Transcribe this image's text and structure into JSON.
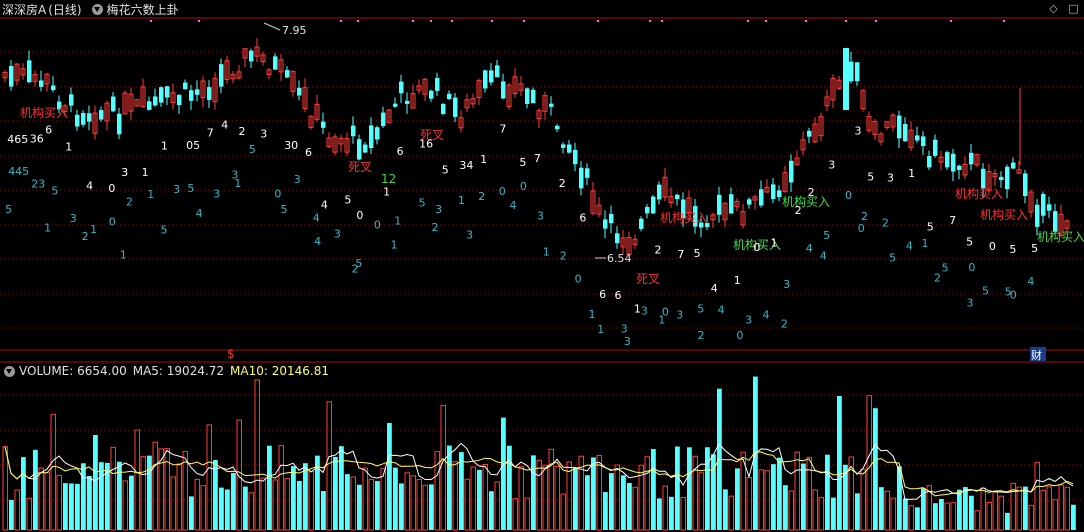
{
  "header": {
    "stock_name": "深深房A",
    "period": "(日线)",
    "indicator": "梅花六数上卦"
  },
  "volume_header": {
    "volume_label": "VOLUME: 6654.00",
    "ma5_label": "MA5: 19024.72",
    "ma10_label": "MA10: 20146.81"
  },
  "colors": {
    "up": "#ff3c3c",
    "down": "#54ffff",
    "grid": "#8b0000",
    "ma5": "#ffffff",
    "ma10": "#ffff66",
    "signal_sell": "#ff3030",
    "signal_buy": "#44dd44",
    "num_white": "#ffffff",
    "num_cyan": "#38b8c8"
  },
  "chart_data": [
    {
      "type": "candlestick",
      "title": "深深房A (日线) 梅花六数上卦",
      "annotations": [
        {
          "text": "7.95",
          "kind": "high-marker"
        },
        {
          "text": "6.54",
          "kind": "low-marker"
        },
        {
          "text": "机构买入",
          "color": "sell"
        },
        {
          "text": "死叉",
          "color": "sell"
        },
        {
          "text": "死叉",
          "color": "sell"
        },
        {
          "text": "死叉",
          "color": "sell"
        },
        {
          "text": "机构买入",
          "color": "sell"
        },
        {
          "text": "机构买入",
          "color": "buy"
        },
        {
          "text": "机构买入",
          "color": "buy"
        },
        {
          "text": "机构买入",
          "color": "sell"
        },
        {
          "text": "机构买入",
          "color": "sell"
        },
        {
          "text": "机构买入",
          "color": "buy"
        },
        {
          "text": "12",
          "color": "buy"
        },
        {
          "text": "$",
          "kind": "event"
        },
        {
          "text": "财",
          "kind": "event"
        }
      ],
      "digits_top": [
        "465",
        "36",
        "6",
        "1",
        "4",
        "0",
        "3",
        "1",
        "1",
        "05",
        "7",
        "4",
        "2",
        "3",
        "30",
        "6",
        "4",
        "5",
        "0",
        "1",
        "6",
        "16",
        "5",
        "34",
        "1",
        "7",
        "5",
        "7",
        "2",
        "6",
        "6",
        "6",
        "1",
        "2",
        "7",
        "5",
        "4",
        "1",
        "0",
        "1",
        "2",
        "2",
        "3",
        "3",
        "5",
        "3",
        "1",
        "5",
        "7",
        "5",
        "0",
        "5",
        "5"
      ],
      "digits_mid": [
        "445",
        "23",
        "5",
        "3",
        "1",
        "0",
        "2",
        "1",
        "3",
        "5",
        "3",
        "3",
        "5",
        "0",
        "3",
        "4",
        "3",
        "5",
        "0",
        "1",
        "5",
        "3",
        "1",
        "2",
        "0",
        "0",
        "3",
        "2",
        "0",
        "1",
        "3",
        "3",
        "0",
        "3",
        "5",
        "4",
        "3",
        "4",
        "3",
        "4",
        "5",
        "0",
        "2",
        "2",
        "4",
        "1",
        "5",
        "0",
        "5",
        "5",
        "4"
      ],
      "digits_low": [
        "5",
        "1",
        "2",
        "1",
        "5",
        "4",
        "1",
        "5",
        "4",
        "2",
        "1",
        "2",
        "3",
        "4",
        "1",
        "1",
        "3",
        "1",
        "2",
        "0",
        "2",
        "4",
        "0",
        "5",
        "2",
        "3",
        "0"
      ]
    },
    {
      "type": "bar",
      "title": "VOLUME",
      "series": [
        {
          "name": "VOLUME",
          "last_value": 6654.0
        },
        {
          "name": "MA5",
          "last_value": 19024.72
        },
        {
          "name": "MA10",
          "last_value": 20146.81
        }
      ]
    }
  ]
}
